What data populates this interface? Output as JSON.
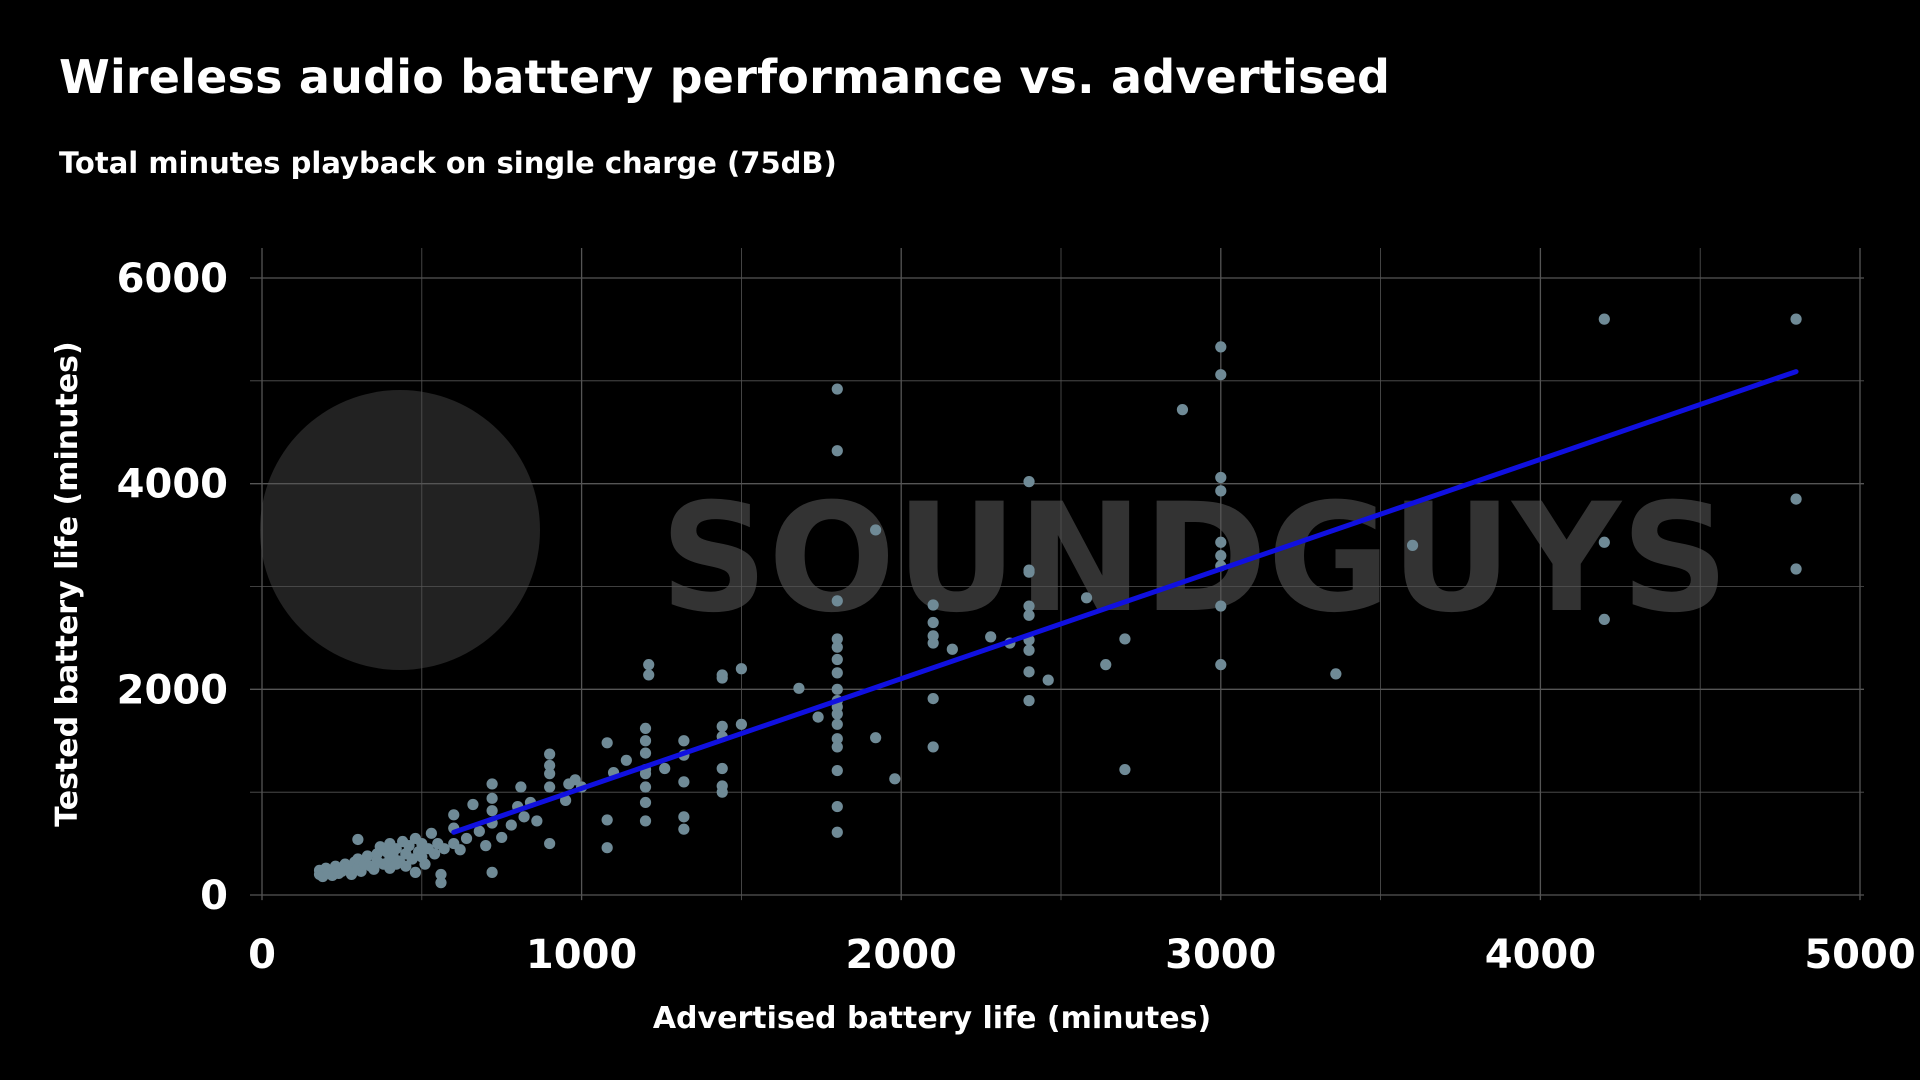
{
  "chart_data": {
    "type": "scatter",
    "title": "Wireless audio battery performance vs. advertised",
    "subtitle": "Total minutes playback on single charge (75dB)",
    "xlabel": "Advertised battery life (minutes)",
    "ylabel": "Tested battery life (minutes)",
    "xlim": [
      0,
      5000
    ],
    "ylim": [
      0,
      6000
    ],
    "xticks": [
      0,
      1000,
      2000,
      3000,
      4000,
      5000
    ],
    "yticks": [
      0,
      2000,
      4000,
      6000
    ],
    "grid": true,
    "watermark": "SOUNDGUYS",
    "colors": {
      "background": "#000000",
      "points": "#6f8a96",
      "trend": "#1010e0",
      "grid": "#555555",
      "watermark": "#333333"
    },
    "trendline": {
      "x": [
        600,
        4800
      ],
      "y": [
        610,
        5090
      ]
    },
    "points": [
      [
        180,
        200
      ],
      [
        180,
        240
      ],
      [
        190,
        180
      ],
      [
        200,
        260
      ],
      [
        210,
        220
      ],
      [
        220,
        190
      ],
      [
        230,
        280
      ],
      [
        240,
        210
      ],
      [
        250,
        230
      ],
      [
        260,
        300
      ],
      [
        270,
        250
      ],
      [
        280,
        200
      ],
      [
        290,
        320
      ],
      [
        300,
        260
      ],
      [
        300,
        350
      ],
      [
        300,
        540
      ],
      [
        310,
        230
      ],
      [
        320,
        300
      ],
      [
        330,
        380
      ],
      [
        340,
        280
      ],
      [
        350,
        250
      ],
      [
        360,
        400
      ],
      [
        360,
        330
      ],
      [
        370,
        470
      ],
      [
        380,
        300
      ],
      [
        390,
        420
      ],
      [
        400,
        350
      ],
      [
        400,
        260
      ],
      [
        400,
        500
      ],
      [
        410,
        380
      ],
      [
        420,
        450
      ],
      [
        420,
        300
      ],
      [
        430,
        330
      ],
      [
        440,
        520
      ],
      [
        450,
        400
      ],
      [
        450,
        280
      ],
      [
        460,
        480
      ],
      [
        470,
        350
      ],
      [
        480,
        550
      ],
      [
        480,
        220
      ],
      [
        490,
        420
      ],
      [
        500,
        450
      ],
      [
        500,
        500
      ],
      [
        500,
        370
      ],
      [
        510,
        300
      ],
      [
        520,
        450
      ],
      [
        530,
        600
      ],
      [
        540,
        400
      ],
      [
        550,
        500
      ],
      [
        560,
        200
      ],
      [
        560,
        120
      ],
      [
        570,
        450
      ],
      [
        600,
        500
      ],
      [
        600,
        650
      ],
      [
        600,
        780
      ],
      [
        620,
        440
      ],
      [
        640,
        550
      ],
      [
        660,
        880
      ],
      [
        680,
        620
      ],
      [
        700,
        480
      ],
      [
        720,
        220
      ],
      [
        720,
        700
      ],
      [
        720,
        820
      ],
      [
        720,
        940
      ],
      [
        720,
        1080
      ],
      [
        750,
        560
      ],
      [
        780,
        680
      ],
      [
        800,
        860
      ],
      [
        810,
        1050
      ],
      [
        820,
        760
      ],
      [
        840,
        900
      ],
      [
        860,
        720
      ],
      [
        900,
        500
      ],
      [
        900,
        1050
      ],
      [
        900,
        1180
      ],
      [
        900,
        1260
      ],
      [
        900,
        1370
      ],
      [
        950,
        920
      ],
      [
        960,
        1080
      ],
      [
        980,
        1120
      ],
      [
        1000,
        1050
      ],
      [
        1080,
        460
      ],
      [
        1080,
        730
      ],
      [
        1080,
        1480
      ],
      [
        1100,
        1190
      ],
      [
        1140,
        1310
      ],
      [
        1200,
        1180
      ],
      [
        1200,
        1380
      ],
      [
        1200,
        1500
      ],
      [
        1200,
        1620
      ],
      [
        1200,
        1220
      ],
      [
        1200,
        1050
      ],
      [
        1200,
        900
      ],
      [
        1200,
        720
      ],
      [
        1210,
        2140
      ],
      [
        1210,
        2240
      ],
      [
        1260,
        1230
      ],
      [
        1320,
        1360
      ],
      [
        1320,
        1500
      ],
      [
        1320,
        1100
      ],
      [
        1320,
        640
      ],
      [
        1320,
        760
      ],
      [
        1440,
        1230
      ],
      [
        1440,
        1540
      ],
      [
        1440,
        1640
      ],
      [
        1440,
        1000
      ],
      [
        1440,
        1060
      ],
      [
        1440,
        2140
      ],
      [
        1440,
        2110
      ],
      [
        1500,
        1660
      ],
      [
        1500,
        2200
      ],
      [
        1680,
        2010
      ],
      [
        1740,
        1730
      ],
      [
        1800,
        1830
      ],
      [
        1800,
        2000
      ],
      [
        1800,
        1890
      ],
      [
        1800,
        1760
      ],
      [
        1800,
        1660
      ],
      [
        1800,
        1520
      ],
      [
        1800,
        1440
      ],
      [
        1800,
        1210
      ],
      [
        1800,
        860
      ],
      [
        1800,
        610
      ],
      [
        1800,
        2160
      ],
      [
        1800,
        2290
      ],
      [
        1800,
        2410
      ],
      [
        1800,
        2490
      ],
      [
        1800,
        2860
      ],
      [
        1800,
        4320
      ],
      [
        1800,
        4920
      ],
      [
        1920,
        1530
      ],
      [
        1920,
        3550
      ],
      [
        1980,
        1130
      ],
      [
        2100,
        1910
      ],
      [
        2100,
        1440
      ],
      [
        2100,
        2450
      ],
      [
        2100,
        2520
      ],
      [
        2100,
        2650
      ],
      [
        2100,
        2820
      ],
      [
        2160,
        2390
      ],
      [
        2280,
        2510
      ],
      [
        2340,
        2450
      ],
      [
        2400,
        1890
      ],
      [
        2400,
        2170
      ],
      [
        2400,
        2380
      ],
      [
        2400,
        2480
      ],
      [
        2400,
        2720
      ],
      [
        2400,
        2810
      ],
      [
        2400,
        3140
      ],
      [
        2400,
        3160
      ],
      [
        2400,
        4020
      ],
      [
        2460,
        2090
      ],
      [
        2580,
        2890
      ],
      [
        2640,
        2240
      ],
      [
        2700,
        1220
      ],
      [
        2700,
        2490
      ],
      [
        2880,
        4720
      ],
      [
        3000,
        2240
      ],
      [
        3000,
        2810
      ],
      [
        3000,
        3200
      ],
      [
        3000,
        3300
      ],
      [
        3000,
        3430
      ],
      [
        3000,
        3930
      ],
      [
        3000,
        4060
      ],
      [
        3000,
        5060
      ],
      [
        3000,
        5330
      ],
      [
        3360,
        2150
      ],
      [
        3600,
        3400
      ],
      [
        4200,
        2680
      ],
      [
        4200,
        3430
      ],
      [
        4200,
        5600
      ],
      [
        4800,
        3170
      ],
      [
        4800,
        3850
      ],
      [
        4800,
        5600
      ]
    ]
  }
}
